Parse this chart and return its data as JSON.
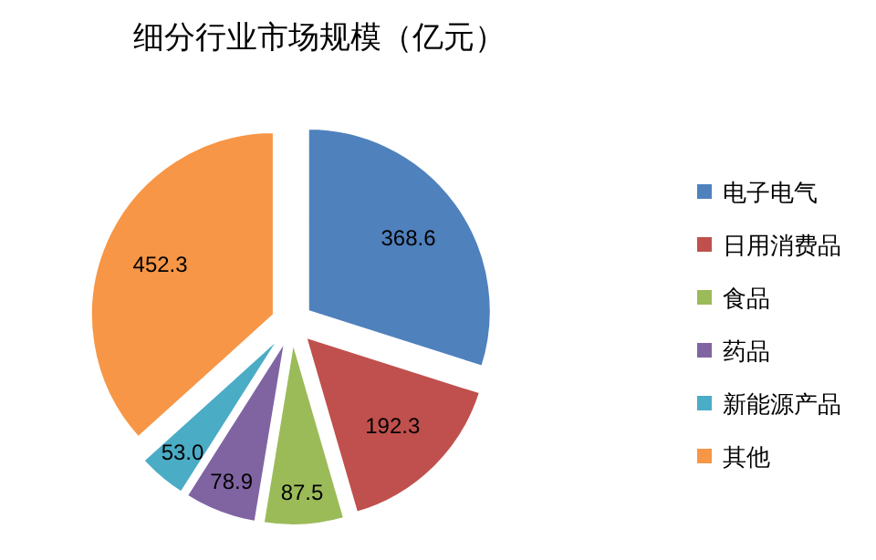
{
  "chart_data": {
    "type": "pie",
    "title": "细分行业市场规模（亿元）",
    "categories": [
      "电子电气",
      "日用消费品",
      "食品",
      "药品",
      "新能源产品",
      "其他"
    ],
    "values": [
      368.6,
      192.3,
      87.5,
      78.9,
      53.0,
      452.3
    ],
    "value_labels": [
      "368.6",
      "192.3",
      "87.5",
      "78.9",
      "53.0",
      "452.3"
    ],
    "colors": [
      "#4f81bd",
      "#c0504d",
      "#9bbb59",
      "#8064a2",
      "#4bacc6",
      "#f79646"
    ],
    "legend": "right"
  }
}
